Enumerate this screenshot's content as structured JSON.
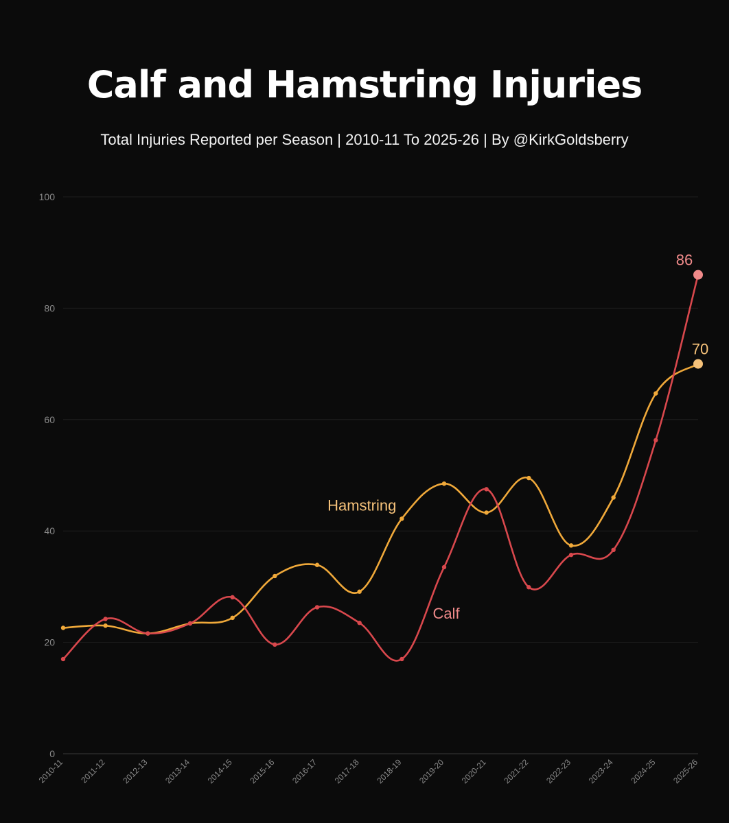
{
  "chart_data": {
    "type": "line",
    "title": "Calf and Hamstring Injuries",
    "subtitle": "Total Injuries Reported per Season | 2010-11 To 2025-26  | By @KirkGoldsberry",
    "xlabel": "",
    "ylabel": "",
    "ylim": [
      0,
      100
    ],
    "yticks": [
      0,
      20,
      40,
      60,
      80,
      100
    ],
    "grid": true,
    "categories": [
      "2010-11",
      "2011-12",
      "2012-13",
      "2013-14",
      "2014-15",
      "2015-16",
      "2016-17",
      "2017-18",
      "2018-19",
      "2019-20",
      "2020-21",
      "2021-22",
      "2022-23",
      "2023-24",
      "2024-25",
      "2025-26"
    ],
    "series": [
      {
        "name": "Hamstring",
        "color": "#f0a93a",
        "label_color": "#f6c27a",
        "values": [
          22.6,
          23.0,
          21.6,
          23.4,
          24.4,
          31.9,
          33.9,
          29.1,
          42.2,
          48.5,
          43.3,
          49.5,
          37.4,
          46.0,
          64.7,
          70
        ],
        "end_label": "70"
      },
      {
        "name": "Calf",
        "color": "#d9484d",
        "label_color": "#f08a8a",
        "values": [
          17.0,
          24.2,
          21.6,
          23.4,
          28.1,
          19.6,
          26.3,
          23.5,
          17.0,
          33.5,
          47.5,
          29.9,
          35.7,
          36.6,
          56.3,
          86
        ],
        "end_label": "86"
      }
    ]
  }
}
